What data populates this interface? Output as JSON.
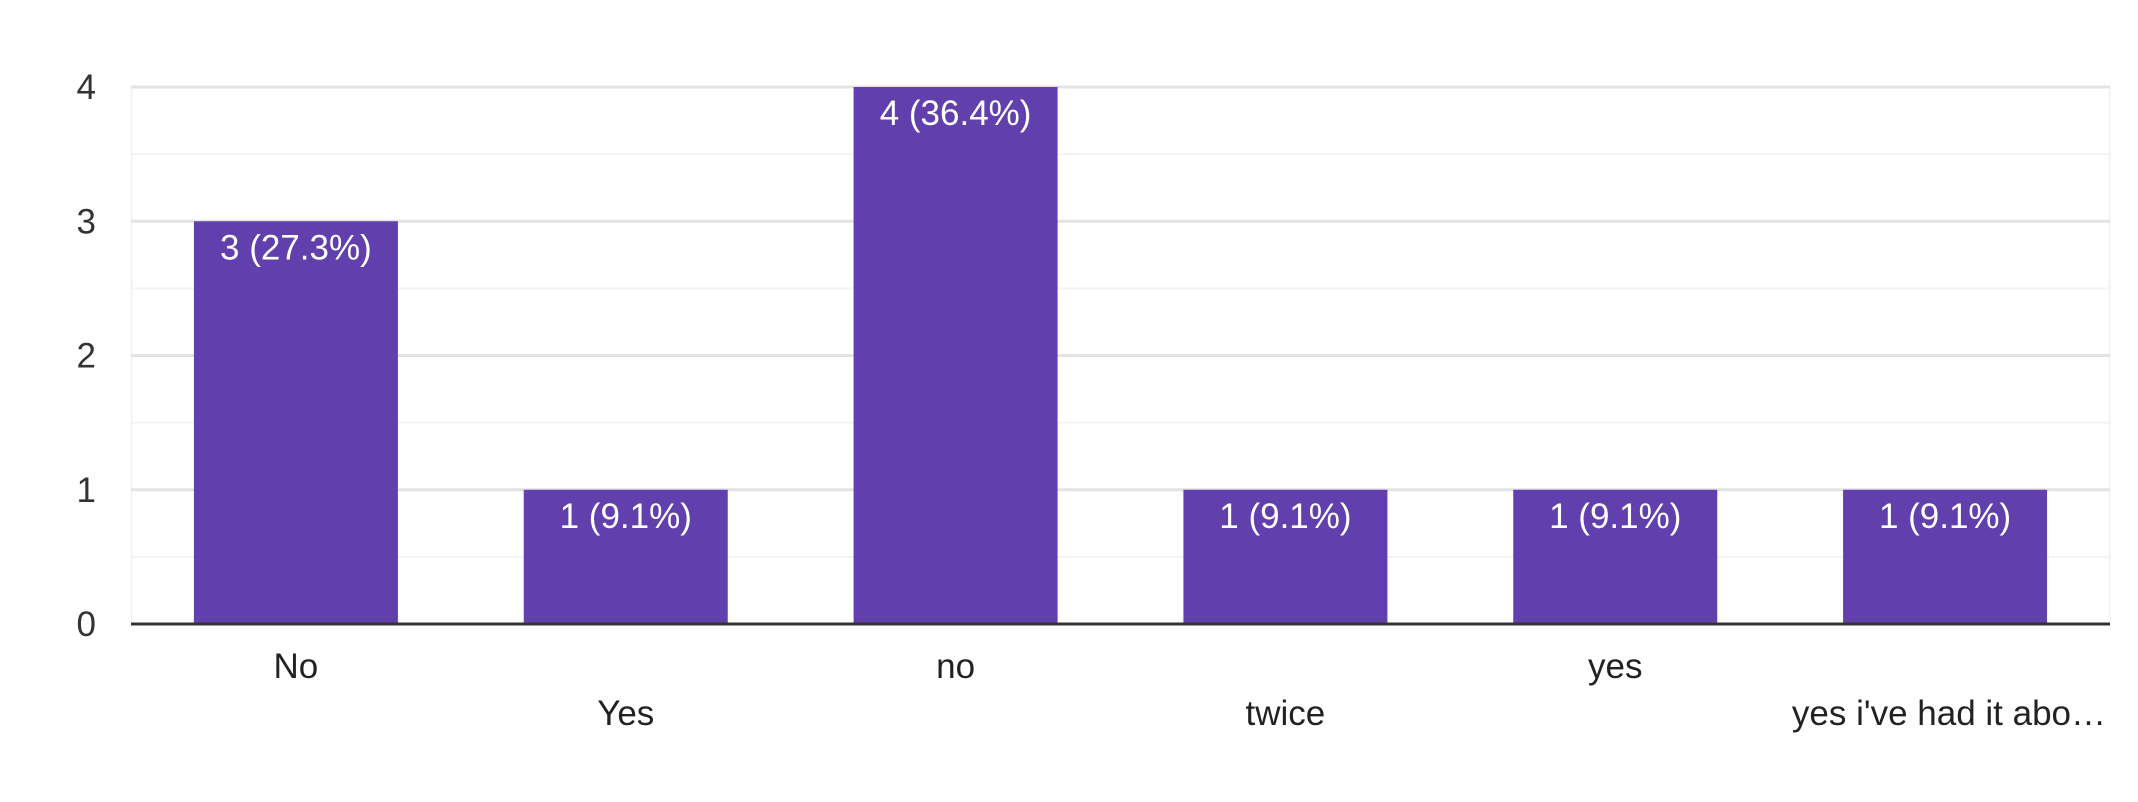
{
  "chart_data": {
    "type": "bar",
    "categories": [
      "No",
      "Yes",
      "no",
      "twice",
      "yes",
      "yes i've had it abo…"
    ],
    "values": [
      3,
      1,
      4,
      1,
      1,
      1
    ],
    "data_labels": [
      "3 (27.3%)",
      "1 (9.1%)",
      "4 (36.4%)",
      "1 (9.1%)",
      "1 (9.1%)",
      "1 (9.1%)"
    ],
    "y_ticks": [
      0,
      1,
      2,
      3,
      4
    ],
    "ylim": [
      0,
      4
    ],
    "grid": true,
    "legend": "none",
    "title": "",
    "xlabel": "",
    "ylabel": "",
    "colors": {
      "bar": "#6140ae",
      "major_grid": "#e3e3e3",
      "minor_grid": "#f3f3f3",
      "axis": "#333333"
    }
  }
}
